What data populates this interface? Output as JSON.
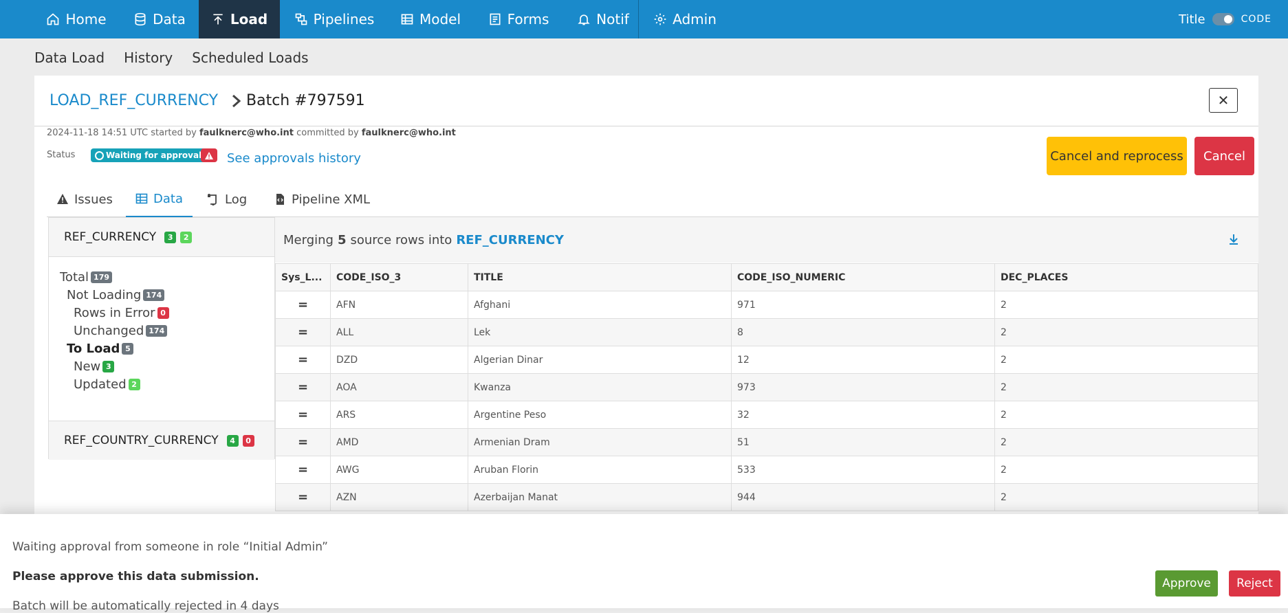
{
  "nav": {
    "items": [
      {
        "label": "Home",
        "icon": "home-icon"
      },
      {
        "label": "Data",
        "icon": "database-icon"
      },
      {
        "label": "Load",
        "icon": "upload-icon",
        "active": true
      },
      {
        "label": "Pipelines",
        "icon": "pipelines-icon"
      },
      {
        "label": "Model",
        "icon": "table-icon"
      },
      {
        "label": "Forms",
        "icon": "forms-icon"
      },
      {
        "label": "Notif",
        "icon": "bell-icon"
      },
      {
        "label": "Admin",
        "icon": "gear-icon"
      }
    ],
    "title_toggle_label": "Title",
    "code_label": "CODE"
  },
  "subnav": {
    "items": [
      "Data Load",
      "History",
      "Scheduled Loads"
    ]
  },
  "header": {
    "crumb_link": "LOAD_REF_CURRENCY",
    "crumb_batch": "Batch #797591",
    "close_glyph": "✕"
  },
  "meta": {
    "started_time": "2024-11-18 14:51 UTC",
    "started_by_text": "started by",
    "started_by": "faulknerc@who.int",
    "committed_by_text": "committed by",
    "committed_by": "faulknerc@who.int"
  },
  "status": {
    "label": "Status",
    "badge": "Waiting for approval",
    "approvals_link": "See approvals history"
  },
  "actions": {
    "reprocess": "Cancel and reprocess",
    "cancel": "Cancel"
  },
  "tabs": [
    {
      "label": "Issues",
      "icon": "warning-icon"
    },
    {
      "label": "Data",
      "icon": "grid-icon",
      "active": true
    },
    {
      "label": "Log",
      "icon": "scroll-icon"
    },
    {
      "label": "Pipeline XML",
      "icon": "file-code-icon"
    }
  ],
  "sidebar": {
    "tables": [
      {
        "name": "REF_CURRENCY",
        "new": "3",
        "updated": "2"
      },
      {
        "name": "REF_COUNTRY_CURRENCY",
        "new": "4",
        "errors": "0"
      }
    ],
    "tree": {
      "total": {
        "label": "Total",
        "count": "179"
      },
      "not_loading": {
        "label": "Not Loading",
        "count": "174"
      },
      "rows_in_error": {
        "label": "Rows in Error",
        "count": "0"
      },
      "unchanged": {
        "label": "Unchanged",
        "count": "174"
      },
      "to_load": {
        "label": "To Load",
        "count": "5"
      },
      "new": {
        "label": "New",
        "count": "3"
      },
      "updated": {
        "label": "Updated",
        "count": "2"
      }
    }
  },
  "data_panel": {
    "prefix": "Merging",
    "count": "5",
    "middle": "source rows into",
    "table": "REF_CURRENCY",
    "columns": [
      "Sys_L...",
      "CODE_ISO_3",
      "TITLE",
      "CODE_ISO_NUMERIC",
      "DEC_PLACES"
    ],
    "rows": [
      [
        "=",
        "AFN",
        "Afghani",
        "971",
        "2"
      ],
      [
        "=",
        "ALL",
        "Lek",
        "8",
        "2"
      ],
      [
        "=",
        "DZD",
        "Algerian Dinar",
        "12",
        "2"
      ],
      [
        "=",
        "AOA",
        "Kwanza",
        "973",
        "2"
      ],
      [
        "=",
        "ARS",
        "Argentine Peso",
        "32",
        "2"
      ],
      [
        "=",
        "AMD",
        "Armenian Dram",
        "51",
        "2"
      ],
      [
        "=",
        "AWG",
        "Aruban Florin",
        "533",
        "2"
      ],
      [
        "=",
        "AZN",
        "Azerbaijan Manat",
        "944",
        "2"
      ]
    ]
  },
  "approval": {
    "line1": "Waiting approval from someone in role “Initial Admin”",
    "line2": "Please approve this data submission.",
    "line3": "Batch will be automatically rejected in 4 days",
    "approve": "Approve",
    "reject": "Reject"
  }
}
